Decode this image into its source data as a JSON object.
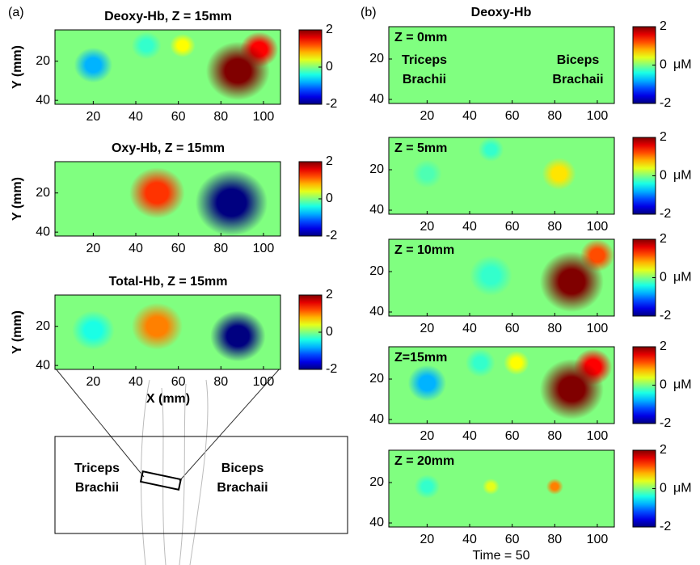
{
  "figure": {
    "panel_labels": [
      "(a)",
      "(b)"
    ],
    "axes": {
      "xlim": [
        2,
        108
      ],
      "xticks": [
        20,
        40,
        60,
        80,
        100
      ],
      "ylim": [
        4,
        42
      ],
      "yticks": [
        20,
        40
      ]
    },
    "colorbar": {
      "lim": [
        -2,
        2
      ],
      "ticks": [
        -2,
        0,
        2
      ]
    },
    "a": {
      "x_label": "X (mm)",
      "y_label": "Y (mm)",
      "panels": [
        {
          "title": "Deoxy-Hb, Z = 15mm",
          "blobs": [
            {
              "x": 20,
              "y": 22,
              "value": -0.8,
              "r": 9
            },
            {
              "x": 45,
              "y": 12,
              "value": -0.3,
              "r": 7
            },
            {
              "x": 62,
              "y": 12,
              "value": 0.5,
              "r": 6
            },
            {
              "x": 98,
              "y": 14,
              "value": 1.5,
              "r": 9
            },
            {
              "x": 88,
              "y": 25,
              "value": 3,
              "r": 15
            }
          ]
        },
        {
          "title": "Oxy-Hb, Z = 15mm",
          "blobs": [
            {
              "x": 50,
              "y": 20,
              "value": 1.3,
              "r": 13
            },
            {
              "x": 85,
              "y": 25,
              "value": -3,
              "r": 17
            }
          ]
        },
        {
          "title": "Total-Hb, Z = 15mm",
          "blobs": [
            {
              "x": 20,
              "y": 22,
              "value": -0.4,
              "r": 10
            },
            {
              "x": 50,
              "y": 20,
              "value": 1,
              "r": 12
            },
            {
              "x": 88,
              "y": 25,
              "value": -2.5,
              "r": 13
            }
          ]
        }
      ]
    },
    "b": {
      "title": "Deoxy-Hb",
      "unit": "μM",
      "footer": "Time = 50",
      "panels": [
        {
          "label": "Z = 0mm",
          "notes": [
            [
              "Triceps",
              "Brachii"
            ],
            [
              "Biceps",
              "Brachaii"
            ]
          ],
          "blobs": []
        },
        {
          "label": "Z = 5mm",
          "blobs": [
            {
              "x": 20,
              "y": 22,
              "value": -0.2,
              "r": 7
            },
            {
              "x": 50,
              "y": 10,
              "value": -0.3,
              "r": 6
            },
            {
              "x": 82,
              "y": 22,
              "value": 0.6,
              "r": 8
            }
          ]
        },
        {
          "label": "Z = 10mm",
          "blobs": [
            {
              "x": 50,
              "y": 22,
              "value": -0.3,
              "r": 10
            },
            {
              "x": 100,
              "y": 12,
              "value": 1.2,
              "r": 8
            },
            {
              "x": 88,
              "y": 25,
              "value": 2.8,
              "r": 15
            }
          ]
        },
        {
          "label": "Z=15mm",
          "blobs": [
            {
              "x": 20,
              "y": 22,
              "value": -0.8,
              "r": 9
            },
            {
              "x": 45,
              "y": 12,
              "value": -0.3,
              "r": 7
            },
            {
              "x": 62,
              "y": 12,
              "value": 0.5,
              "r": 6
            },
            {
              "x": 98,
              "y": 14,
              "value": 1.5,
              "r": 9
            },
            {
              "x": 88,
              "y": 25,
              "value": 3,
              "r": 15
            }
          ]
        },
        {
          "label": "Z = 20mm",
          "blobs": [
            {
              "x": 20,
              "y": 22,
              "value": -0.3,
              "r": 6
            },
            {
              "x": 50,
              "y": 22,
              "value": 0.4,
              "r": 4
            },
            {
              "x": 80,
              "y": 22,
              "value": 1,
              "r": 4
            }
          ]
        }
      ]
    },
    "diagram": {
      "left": [
        "Triceps",
        "Brachii"
      ],
      "right": [
        "Biceps",
        "Brachaii"
      ]
    }
  }
}
